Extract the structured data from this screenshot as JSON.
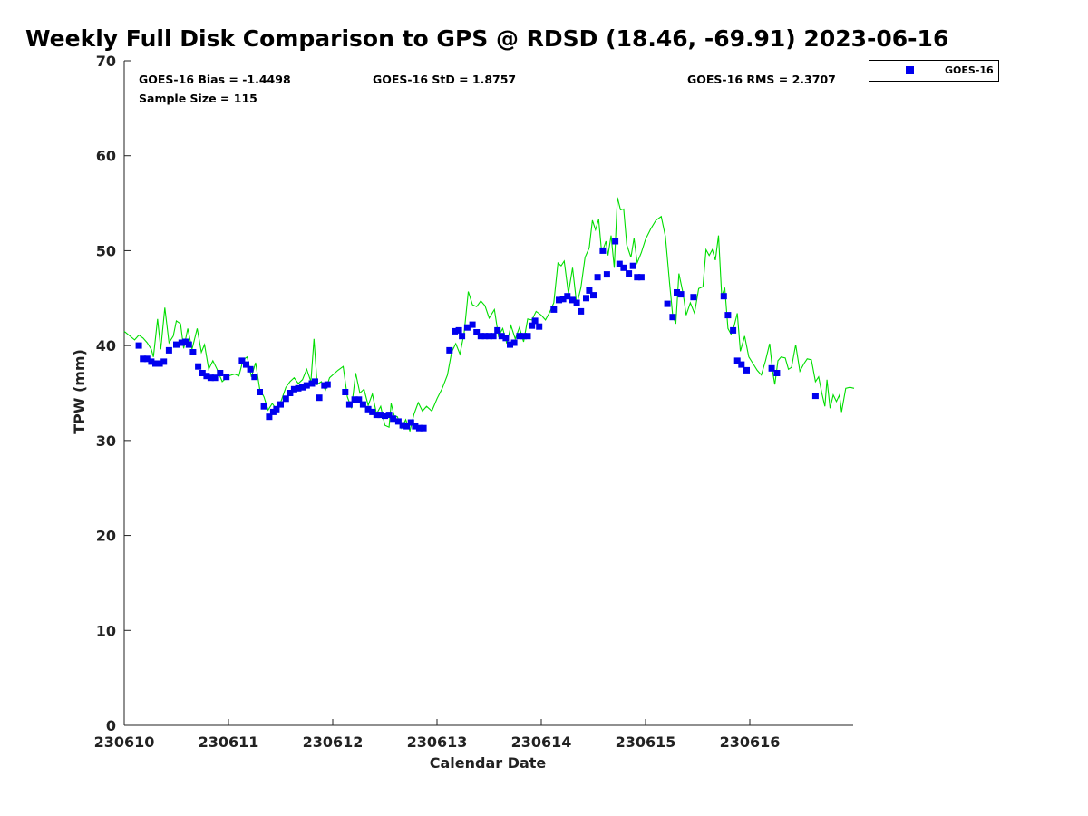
{
  "chart_data": {
    "type": "scatter",
    "title": "Weekly Full Disk Comparison to GPS @ RDSD (18.46, -69.91) 2023-06-16",
    "xlabel": "Calendar Date",
    "ylabel": "TPW (mm)",
    "x_tick_labels": [
      "230610",
      "230611",
      "230612",
      "230613",
      "230614",
      "230615",
      "230616"
    ],
    "xlim": [
      0,
      7
    ],
    "ylim": [
      0,
      70
    ],
    "y_ticks": [
      0,
      10,
      20,
      30,
      40,
      50,
      60,
      70
    ],
    "legend": {
      "position": "top-right-outside",
      "entries": [
        "GOES-16"
      ]
    },
    "stats": {
      "bias": "GOES-16 Bias = -1.4498",
      "std": "GOES-16 StD = 1.8757",
      "rms": "GOES-16 RMS = 2.3707",
      "sample_size": "Sample Size = 115"
    },
    "colors": {
      "goes": "#0000ee",
      "gps": "#00dd00"
    },
    "series": [
      {
        "name": "GOES-16",
        "marker": "square",
        "points": [
          [
            0.14,
            40.0
          ],
          [
            0.18,
            38.6
          ],
          [
            0.22,
            38.6
          ],
          [
            0.26,
            38.3
          ],
          [
            0.3,
            38.1
          ],
          [
            0.34,
            38.1
          ],
          [
            0.38,
            38.3
          ],
          [
            0.43,
            39.5
          ],
          [
            0.5,
            40.1
          ],
          [
            0.55,
            40.3
          ],
          [
            0.59,
            40.4
          ],
          [
            0.62,
            40.1
          ],
          [
            0.66,
            39.3
          ],
          [
            0.71,
            37.8
          ],
          [
            0.75,
            37.1
          ],
          [
            0.79,
            36.8
          ],
          [
            0.83,
            36.6
          ],
          [
            0.87,
            36.6
          ],
          [
            0.92,
            37.1
          ],
          [
            0.98,
            36.7
          ],
          [
            1.13,
            38.4
          ],
          [
            1.17,
            38.0
          ],
          [
            1.21,
            37.5
          ],
          [
            1.25,
            36.7
          ],
          [
            1.3,
            35.1
          ],
          [
            1.34,
            33.6
          ],
          [
            1.39,
            32.5
          ],
          [
            1.43,
            33.0
          ],
          [
            1.46,
            33.3
          ],
          [
            1.5,
            33.8
          ],
          [
            1.55,
            34.4
          ],
          [
            1.59,
            35.0
          ],
          [
            1.63,
            35.4
          ],
          [
            1.67,
            35.5
          ],
          [
            1.71,
            35.6
          ],
          [
            1.75,
            35.8
          ],
          [
            1.8,
            36.0
          ],
          [
            1.83,
            36.2
          ],
          [
            1.87,
            34.5
          ],
          [
            1.92,
            35.8
          ],
          [
            1.95,
            35.9
          ],
          [
            2.12,
            35.1
          ],
          [
            2.16,
            33.8
          ],
          [
            2.21,
            34.3
          ],
          [
            2.25,
            34.3
          ],
          [
            2.29,
            33.8
          ],
          [
            2.34,
            33.3
          ],
          [
            2.38,
            33.0
          ],
          [
            2.42,
            32.7
          ],
          [
            2.46,
            32.7
          ],
          [
            2.5,
            32.6
          ],
          [
            2.54,
            32.7
          ],
          [
            2.58,
            32.3
          ],
          [
            2.63,
            32.0
          ],
          [
            2.67,
            31.6
          ],
          [
            2.71,
            31.5
          ],
          [
            2.75,
            31.9
          ],
          [
            2.79,
            31.5
          ],
          [
            2.83,
            31.3
          ],
          [
            2.87,
            31.3
          ],
          [
            3.12,
            39.5
          ],
          [
            3.17,
            41.5
          ],
          [
            3.21,
            41.6
          ],
          [
            3.24,
            41.0
          ],
          [
            3.29,
            41.9
          ],
          [
            3.34,
            42.2
          ],
          [
            3.38,
            41.4
          ],
          [
            3.42,
            41.0
          ],
          [
            3.46,
            41.0
          ],
          [
            3.5,
            41.0
          ],
          [
            3.54,
            41.0
          ],
          [
            3.58,
            41.6
          ],
          [
            3.62,
            41.0
          ],
          [
            3.66,
            40.8
          ],
          [
            3.7,
            40.1
          ],
          [
            3.74,
            40.3
          ],
          [
            3.79,
            41.0
          ],
          [
            3.83,
            41.0
          ],
          [
            3.87,
            41.0
          ],
          [
            3.91,
            42.1
          ],
          [
            3.94,
            42.6
          ],
          [
            3.98,
            42.0
          ],
          [
            4.12,
            43.8
          ],
          [
            4.17,
            44.8
          ],
          [
            4.21,
            44.9
          ],
          [
            4.25,
            45.2
          ],
          [
            4.3,
            44.8
          ],
          [
            4.34,
            44.5
          ],
          [
            4.38,
            43.6
          ],
          [
            4.43,
            45.0
          ],
          [
            4.46,
            45.8
          ],
          [
            4.5,
            45.3
          ],
          [
            4.54,
            47.2
          ],
          [
            4.59,
            50.0
          ],
          [
            4.63,
            47.5
          ],
          [
            4.71,
            51.0
          ],
          [
            4.75,
            48.6
          ],
          [
            4.79,
            48.2
          ],
          [
            4.84,
            47.6
          ],
          [
            4.88,
            48.4
          ],
          [
            4.92,
            47.2
          ],
          [
            4.96,
            47.2
          ],
          [
            5.21,
            44.4
          ],
          [
            5.26,
            43.0
          ],
          [
            5.3,
            45.6
          ],
          [
            5.34,
            45.4
          ],
          [
            5.46,
            45.1
          ],
          [
            5.75,
            45.2
          ],
          [
            5.79,
            43.2
          ],
          [
            5.84,
            41.6
          ],
          [
            5.88,
            38.4
          ],
          [
            5.92,
            38.0
          ],
          [
            5.97,
            37.4
          ],
          [
            6.21,
            37.6
          ],
          [
            6.26,
            37.1
          ],
          [
            6.63,
            34.7
          ]
        ]
      },
      {
        "name": "",
        "type": "line",
        "points": [
          [
            0.0,
            41.5
          ],
          [
            0.1,
            40.6
          ],
          [
            0.14,
            41.1
          ],
          [
            0.18,
            40.8
          ],
          [
            0.22,
            40.3
          ],
          [
            0.26,
            39.6
          ],
          [
            0.28,
            38.8
          ],
          [
            0.32,
            42.8
          ],
          [
            0.35,
            39.6
          ],
          [
            0.39,
            44.0
          ],
          [
            0.43,
            40.3
          ],
          [
            0.47,
            41.0
          ],
          [
            0.5,
            42.6
          ],
          [
            0.54,
            42.3
          ],
          [
            0.57,
            39.7
          ],
          [
            0.61,
            41.8
          ],
          [
            0.65,
            39.6
          ],
          [
            0.7,
            41.8
          ],
          [
            0.74,
            39.3
          ],
          [
            0.77,
            40.1
          ],
          [
            0.81,
            37.5
          ],
          [
            0.85,
            38.4
          ],
          [
            0.89,
            37.5
          ],
          [
            0.94,
            36.2
          ],
          [
            1.0,
            36.8
          ],
          [
            1.06,
            37.0
          ],
          [
            1.1,
            36.8
          ],
          [
            1.14,
            38.5
          ],
          [
            1.18,
            38.8
          ],
          [
            1.22,
            36.7
          ],
          [
            1.26,
            38.2
          ],
          [
            1.3,
            35.4
          ],
          [
            1.34,
            34.6
          ],
          [
            1.38,
            33.2
          ],
          [
            1.42,
            33.9
          ],
          [
            1.47,
            33.1
          ],
          [
            1.51,
            34.3
          ],
          [
            1.55,
            35.6
          ],
          [
            1.59,
            36.2
          ],
          [
            1.63,
            36.6
          ],
          [
            1.67,
            36.0
          ],
          [
            1.71,
            36.4
          ],
          [
            1.75,
            37.5
          ],
          [
            1.79,
            36.2
          ],
          [
            1.82,
            40.7
          ],
          [
            1.85,
            35.9
          ],
          [
            1.89,
            36.2
          ],
          [
            1.93,
            35.3
          ],
          [
            1.97,
            36.6
          ],
          [
            2.05,
            37.4
          ],
          [
            2.1,
            37.8
          ],
          [
            2.14,
            34.6
          ],
          [
            2.18,
            33.4
          ],
          [
            2.22,
            37.1
          ],
          [
            2.26,
            35.0
          ],
          [
            2.3,
            35.4
          ],
          [
            2.34,
            33.7
          ],
          [
            2.38,
            34.9
          ],
          [
            2.42,
            32.8
          ],
          [
            2.46,
            33.6
          ],
          [
            2.5,
            31.6
          ],
          [
            2.54,
            31.4
          ],
          [
            2.56,
            33.9
          ],
          [
            2.59,
            32.6
          ],
          [
            2.62,
            32.5
          ],
          [
            2.66,
            31.3
          ],
          [
            2.7,
            32.2
          ],
          [
            2.74,
            31.0
          ],
          [
            2.78,
            32.8
          ],
          [
            2.82,
            34.0
          ],
          [
            2.86,
            33.1
          ],
          [
            2.9,
            33.6
          ],
          [
            2.95,
            33.1
          ],
          [
            3.0,
            34.4
          ],
          [
            3.05,
            35.5
          ],
          [
            3.1,
            36.9
          ],
          [
            3.14,
            39.3
          ],
          [
            3.18,
            40.2
          ],
          [
            3.22,
            39.1
          ],
          [
            3.26,
            41.3
          ],
          [
            3.3,
            45.7
          ],
          [
            3.34,
            44.3
          ],
          [
            3.38,
            44.1
          ],
          [
            3.42,
            44.7
          ],
          [
            3.46,
            44.2
          ],
          [
            3.5,
            42.9
          ],
          [
            3.55,
            43.8
          ],
          [
            3.59,
            41.0
          ],
          [
            3.63,
            41.8
          ],
          [
            3.67,
            40.2
          ],
          [
            3.71,
            42.1
          ],
          [
            3.75,
            40.7
          ],
          [
            3.79,
            41.9
          ],
          [
            3.83,
            40.4
          ],
          [
            3.87,
            42.8
          ],
          [
            3.91,
            42.7
          ],
          [
            3.95,
            43.6
          ],
          [
            4.0,
            43.2
          ],
          [
            4.04,
            42.7
          ],
          [
            4.08,
            43.5
          ],
          [
            4.12,
            44.5
          ],
          [
            4.16,
            48.7
          ],
          [
            4.19,
            48.4
          ],
          [
            4.22,
            48.9
          ],
          [
            4.26,
            45.5
          ],
          [
            4.3,
            48.2
          ],
          [
            4.34,
            44.3
          ],
          [
            4.38,
            46.1
          ],
          [
            4.42,
            49.3
          ],
          [
            4.46,
            50.3
          ],
          [
            4.49,
            53.2
          ],
          [
            4.52,
            52.2
          ],
          [
            4.55,
            53.3
          ],
          [
            4.58,
            49.7
          ],
          [
            4.62,
            51.0
          ],
          [
            4.64,
            49.5
          ],
          [
            4.67,
            51.6
          ],
          [
            4.7,
            48.2
          ],
          [
            4.73,
            55.6
          ],
          [
            4.76,
            54.3
          ],
          [
            4.79,
            54.4
          ],
          [
            4.82,
            50.6
          ],
          [
            4.86,
            49.3
          ],
          [
            4.89,
            51.3
          ],
          [
            4.92,
            48.7
          ],
          [
            4.96,
            49.8
          ],
          [
            5.0,
            51.2
          ],
          [
            5.05,
            52.3
          ],
          [
            5.1,
            53.2
          ],
          [
            5.15,
            53.6
          ],
          [
            5.19,
            51.5
          ],
          [
            5.23,
            46.6
          ],
          [
            5.26,
            43.2
          ],
          [
            5.29,
            42.3
          ],
          [
            5.32,
            47.6
          ],
          [
            5.36,
            45.5
          ],
          [
            5.39,
            43.2
          ],
          [
            5.43,
            44.5
          ],
          [
            5.47,
            43.4
          ],
          [
            5.51,
            46.0
          ],
          [
            5.55,
            46.2
          ],
          [
            5.58,
            50.1
          ],
          [
            5.61,
            49.5
          ],
          [
            5.64,
            50.1
          ],
          [
            5.67,
            49.0
          ],
          [
            5.7,
            51.6
          ],
          [
            5.73,
            45.2
          ],
          [
            5.76,
            46.1
          ],
          [
            5.79,
            41.8
          ],
          [
            5.82,
            41.2
          ],
          [
            5.85,
            42.1
          ],
          [
            5.88,
            43.4
          ],
          [
            5.91,
            39.4
          ],
          [
            5.95,
            41.0
          ],
          [
            5.99,
            38.8
          ],
          [
            6.03,
            38.1
          ],
          [
            6.07,
            37.4
          ],
          [
            6.11,
            36.9
          ],
          [
            6.15,
            38.4
          ],
          [
            6.19,
            40.2
          ],
          [
            6.22,
            37.2
          ],
          [
            6.24,
            35.9
          ],
          [
            6.27,
            38.4
          ],
          [
            6.3,
            38.8
          ],
          [
            6.34,
            38.7
          ],
          [
            6.37,
            37.5
          ],
          [
            6.4,
            37.7
          ],
          [
            6.44,
            40.1
          ],
          [
            6.48,
            37.3
          ],
          [
            6.52,
            38.1
          ],
          [
            6.55,
            38.6
          ],
          [
            6.59,
            38.5
          ],
          [
            6.63,
            36.2
          ],
          [
            6.66,
            36.7
          ],
          [
            6.69,
            35.0
          ],
          [
            6.72,
            33.6
          ],
          [
            6.74,
            36.4
          ],
          [
            6.77,
            33.4
          ],
          [
            6.8,
            34.8
          ],
          [
            6.83,
            34.1
          ],
          [
            6.86,
            34.8
          ],
          [
            6.88,
            33.0
          ],
          [
            6.92,
            35.5
          ],
          [
            6.96,
            35.6
          ],
          [
            7.0,
            35.5
          ]
        ]
      }
    ]
  }
}
